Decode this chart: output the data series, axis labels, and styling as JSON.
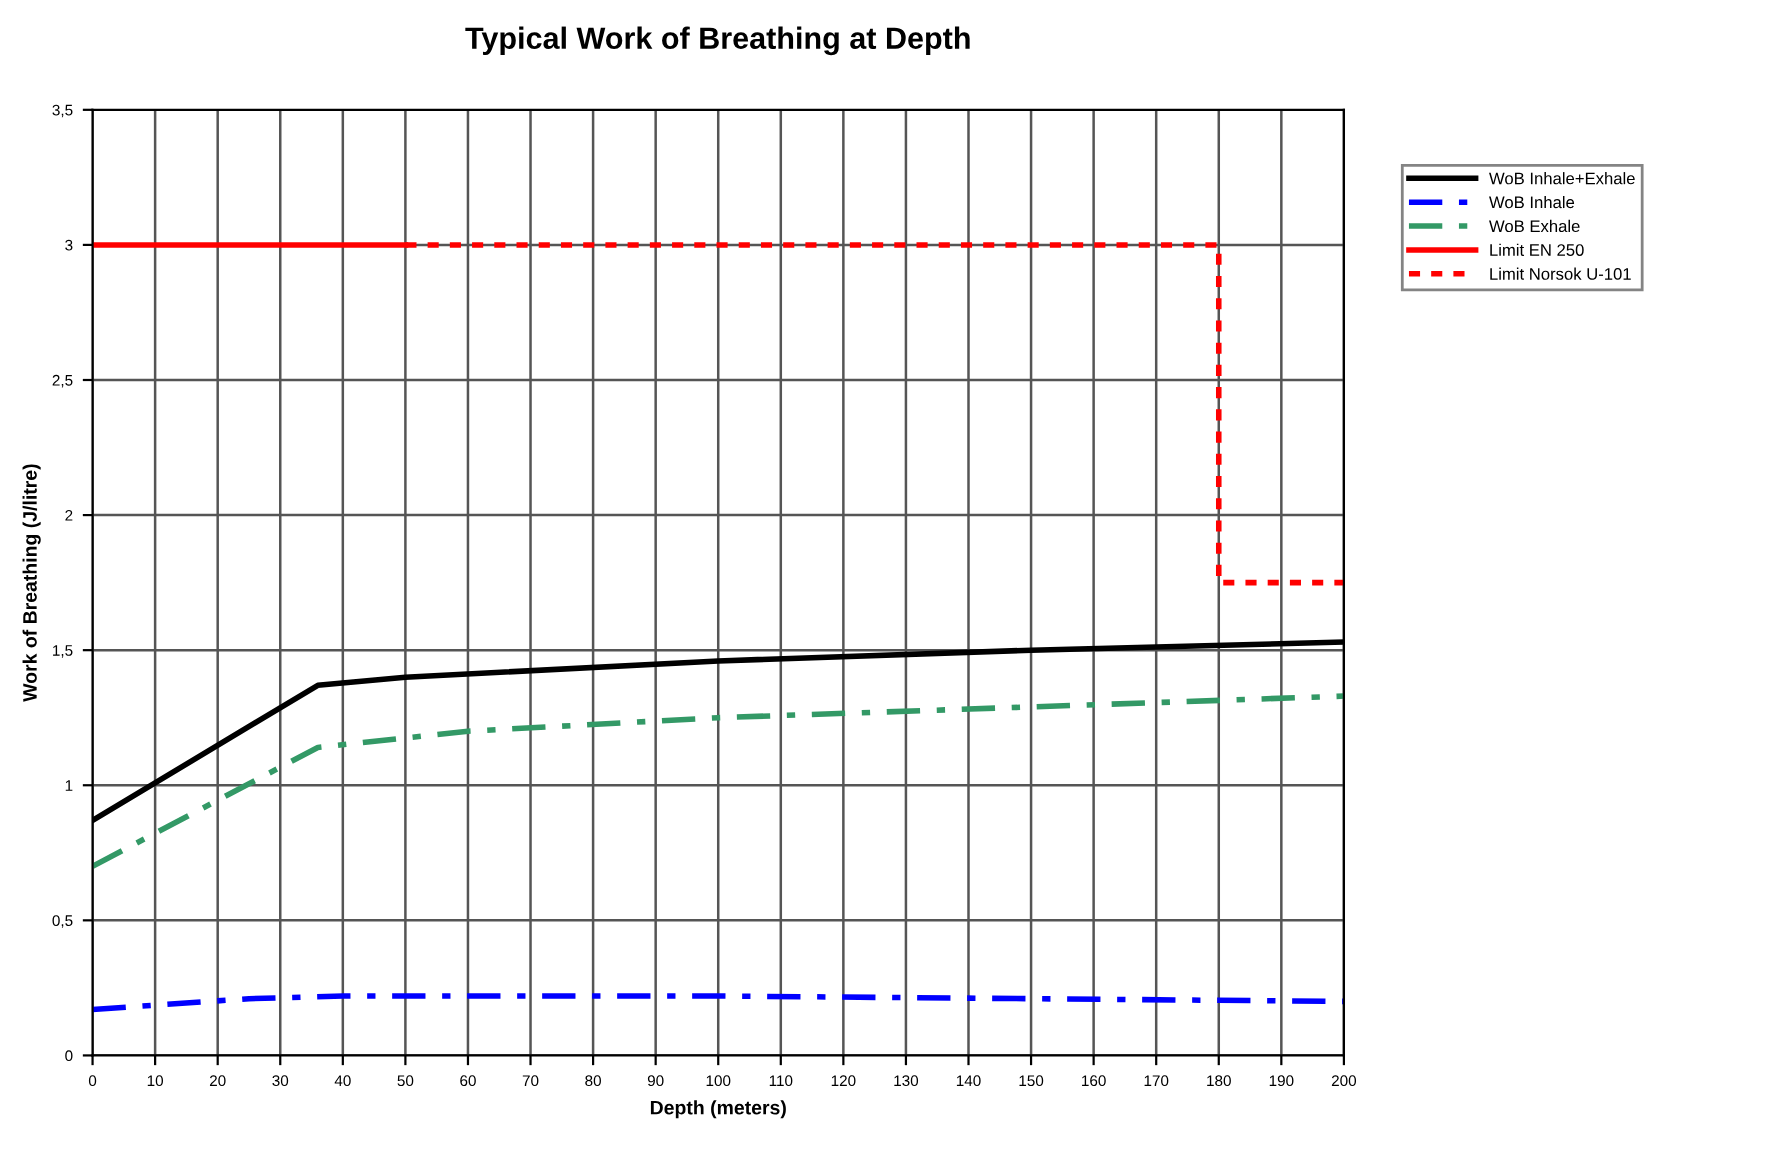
{
  "chart_data": {
    "type": "line",
    "title": "Typical Work of Breathing at Depth",
    "xlabel": "Depth (meters)",
    "ylabel": "Work of Breathing (J/litre)",
    "xlim": [
      0,
      200
    ],
    "xticks": [
      0,
      10,
      20,
      30,
      40,
      50,
      60,
      70,
      80,
      90,
      100,
      110,
      120,
      130,
      140,
      150,
      160,
      170,
      180,
      190,
      200
    ],
    "ylim": [
      0,
      3.5
    ],
    "yticks": [
      0,
      {
        "value": 0.5,
        "label": "0,5"
      },
      1,
      {
        "value": 1.5,
        "label": "1,5"
      },
      2,
      {
        "value": 2.5,
        "label": "2,5"
      },
      3,
      {
        "value": 3.5,
        "label": "3,5"
      }
    ],
    "grid": true,
    "legend": "right",
    "marker": "none",
    "series": [
      {
        "name": "WoB Inhale+Exhale",
        "color": "#000000",
        "line_style": "solid",
        "x": [
          0,
          36,
          50,
          100,
          150,
          200
        ],
        "values": [
          0.87,
          1.37,
          1.4,
          1.46,
          1.5,
          1.53
        ]
      },
      {
        "name": "WoB Inhale",
        "color": "#0000ff",
        "line_style": "dashdot",
        "x": [
          0,
          25,
          40,
          100,
          150,
          200
        ],
        "values": [
          0.17,
          0.21,
          0.22,
          0.22,
          0.21,
          0.2
        ]
      },
      {
        "name": "WoB Exhale",
        "color": "#339966",
        "line_style": "dashdot",
        "x": [
          0,
          36,
          60,
          100,
          150,
          200
        ],
        "values": [
          0.7,
          1.14,
          1.2,
          1.25,
          1.29,
          1.33
        ]
      },
      {
        "name": "Limit EN 250",
        "color": "#ff0000",
        "line_style": "solid",
        "x": [
          0,
          50
        ],
        "values": [
          3,
          3
        ]
      },
      {
        "name": "Limit Norsok U-101",
        "color": "#ff0000",
        "line_style": "dotted",
        "x": [
          50,
          180,
          180,
          200
        ],
        "values": [
          3,
          3,
          1.75,
          1.75
        ]
      }
    ]
  }
}
